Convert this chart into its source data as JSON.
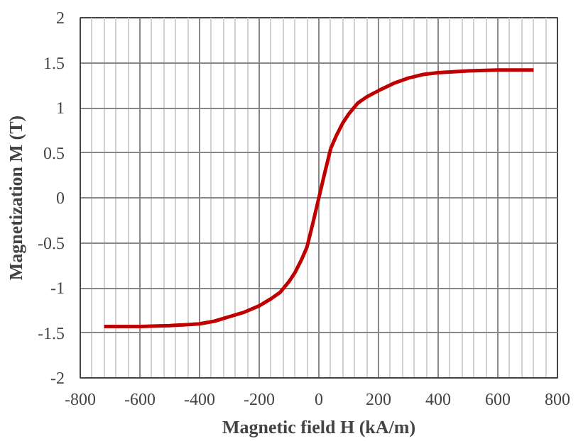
{
  "chart_data": {
    "type": "line",
    "xlabel": "Magnetic field H (kA/m)",
    "ylabel": "Magnetization M (T)",
    "x": [
      -720,
      -600,
      -500,
      -400,
      -350,
      -300,
      -250,
      -200,
      -160,
      -130,
      -100,
      -80,
      -60,
      -40,
      -20,
      0,
      20,
      40,
      60,
      80,
      100,
      130,
      160,
      200,
      250,
      300,
      350,
      400,
      500,
      600,
      720
    ],
    "series": [
      {
        "color": "#c00000",
        "values": [
          -1.43,
          -1.43,
          -1.42,
          -1.4,
          -1.37,
          -1.32,
          -1.27,
          -1.2,
          -1.12,
          -1.05,
          -0.93,
          -0.83,
          -0.7,
          -0.55,
          -0.28,
          0,
          0.28,
          0.55,
          0.7,
          0.83,
          0.93,
          1.05,
          1.12,
          1.19,
          1.27,
          1.33,
          1.37,
          1.39,
          1.41,
          1.42,
          1.42
        ]
      }
    ],
    "xlim": [
      -800,
      800
    ],
    "ylim": [
      -2,
      2
    ],
    "xticks": [
      -800,
      -600,
      -400,
      -200,
      0,
      200,
      400,
      600,
      800
    ],
    "yticks": [
      -2,
      -1.5,
      -1,
      -0.5,
      0,
      0.5,
      1,
      1.5,
      2
    ],
    "grid": true,
    "marker": "none",
    "line_style": "solid"
  }
}
